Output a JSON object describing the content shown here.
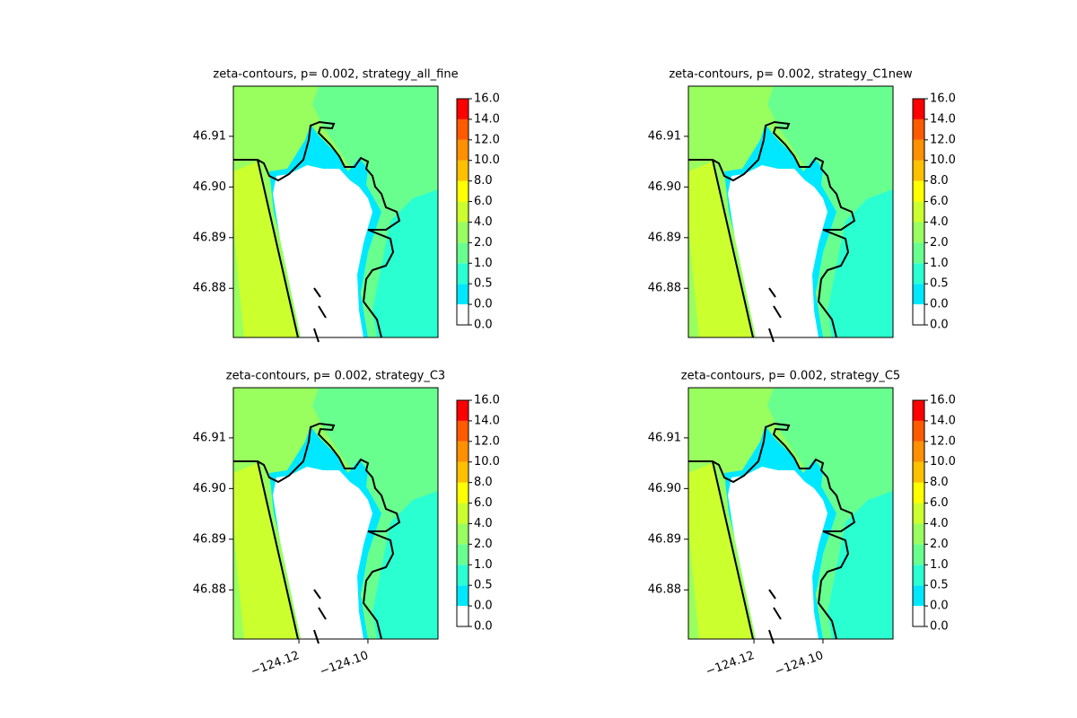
{
  "chart_data": [
    {
      "type": "contour",
      "title": "zeta-contours, p= 0.002, strategy_all_fine",
      "xlim": [
        -124.139,
        -124.0797
      ],
      "ylim": [
        46.8703,
        46.9199
      ],
      "yticks": [
        46.91,
        {
          "value": 46.9,
          "label": "46.90"
        },
        46.89,
        46.88
      ],
      "levels": [
        {
          "value": 0,
          "label": "0.0"
        },
        {
          "value": 0,
          "label": "0.0"
        },
        0.5,
        {
          "value": 1,
          "label": "1.0"
        },
        {
          "value": 2,
          "label": "2.0"
        },
        {
          "value": 4,
          "label": "4.0"
        },
        {
          "value": 6,
          "label": "6.0"
        },
        {
          "value": 8,
          "label": "8.0"
        },
        {
          "value": 10,
          "label": "10.0"
        },
        {
          "value": 12,
          "label": "12.0"
        },
        {
          "value": 14,
          "label": "14.0"
        },
        {
          "value": 16,
          "label": "16.0"
        }
      ],
      "colors": [
        "#ffffff",
        "#00e8ff",
        "#2affd2",
        "#69ff8f",
        "#98ff5f",
        "#ccff2e",
        "#ffff00",
        "#ffc000",
        "#ff9000",
        "#ff5a00",
        "#ff0000"
      ]
    },
    {
      "type": "contour",
      "title": "zeta-contours, p= 0.002, strategy_C1new",
      "xlim": [
        -124.139,
        -124.0797
      ],
      "ylim": [
        46.8703,
        46.9199
      ],
      "yticks": [
        46.91,
        {
          "value": 46.9,
          "label": "46.90"
        },
        46.89,
        46.88
      ],
      "levels": [
        {
          "value": 0,
          "label": "0.0"
        },
        {
          "value": 0,
          "label": "0.0"
        },
        0.5,
        {
          "value": 1,
          "label": "1.0"
        },
        {
          "value": 2,
          "label": "2.0"
        },
        {
          "value": 4,
          "label": "4.0"
        },
        {
          "value": 6,
          "label": "6.0"
        },
        {
          "value": 8,
          "label": "8.0"
        },
        {
          "value": 10,
          "label": "10.0"
        },
        {
          "value": 12,
          "label": "12.0"
        },
        {
          "value": 14,
          "label": "14.0"
        },
        {
          "value": 16,
          "label": "16.0"
        }
      ],
      "colors": [
        "#ffffff",
        "#00e8ff",
        "#2affd2",
        "#69ff8f",
        "#98ff5f",
        "#ccff2e",
        "#ffff00",
        "#ffc000",
        "#ff9000",
        "#ff5a00",
        "#ff0000"
      ]
    },
    {
      "type": "contour",
      "title": "zeta-contours, p= 0.002, strategy_C3",
      "xlim": [
        -124.139,
        -124.0797
      ],
      "ylim": [
        46.8703,
        46.9199
      ],
      "xticks": [
        {
          "value": -124.12,
          "label": "−124.12"
        },
        {
          "value": -124.1,
          "label": "−124.10"
        }
      ],
      "yticks": [
        46.91,
        {
          "value": 46.9,
          "label": "46.90"
        },
        46.89,
        46.88
      ],
      "levels": [
        {
          "value": 0,
          "label": "0.0"
        },
        {
          "value": 0,
          "label": "0.0"
        },
        0.5,
        {
          "value": 1,
          "label": "1.0"
        },
        {
          "value": 2,
          "label": "2.0"
        },
        {
          "value": 4,
          "label": "4.0"
        },
        {
          "value": 6,
          "label": "6.0"
        },
        {
          "value": 8,
          "label": "8.0"
        },
        {
          "value": 10,
          "label": "10.0"
        },
        {
          "value": 12,
          "label": "12.0"
        },
        {
          "value": 14,
          "label": "14.0"
        },
        {
          "value": 16,
          "label": "16.0"
        }
      ],
      "colors": [
        "#ffffff",
        "#00e8ff",
        "#2affd2",
        "#69ff8f",
        "#98ff5f",
        "#ccff2e",
        "#ffff00",
        "#ffc000",
        "#ff9000",
        "#ff5a00",
        "#ff0000"
      ]
    },
    {
      "type": "contour",
      "title": "zeta-contours, p= 0.002, strategy_C5",
      "xlim": [
        -124.139,
        -124.0797
      ],
      "ylim": [
        46.8703,
        46.9199
      ],
      "xticks": [
        {
          "value": -124.12,
          "label": "−124.12"
        },
        {
          "value": -124.1,
          "label": "−124.10"
        }
      ],
      "yticks": [
        46.91,
        {
          "value": 46.9,
          "label": "46.90"
        },
        46.89,
        46.88
      ],
      "levels": [
        {
          "value": 0,
          "label": "0.0"
        },
        {
          "value": 0,
          "label": "0.0"
        },
        0.5,
        {
          "value": 1,
          "label": "1.0"
        },
        {
          "value": 2,
          "label": "2.0"
        },
        {
          "value": 4,
          "label": "4.0"
        },
        {
          "value": 6,
          "label": "6.0"
        },
        {
          "value": 8,
          "label": "8.0"
        },
        {
          "value": 10,
          "label": "10.0"
        },
        {
          "value": 12,
          "label": "12.0"
        },
        {
          "value": 14,
          "label": "14.0"
        },
        {
          "value": 16,
          "label": "16.0"
        }
      ],
      "colors": [
        "#ffffff",
        "#00e8ff",
        "#2affd2",
        "#69ff8f",
        "#98ff5f",
        "#ccff2e",
        "#ffff00",
        "#ffc000",
        "#ff9000",
        "#ff5a00",
        "#ff0000"
      ]
    }
  ]
}
